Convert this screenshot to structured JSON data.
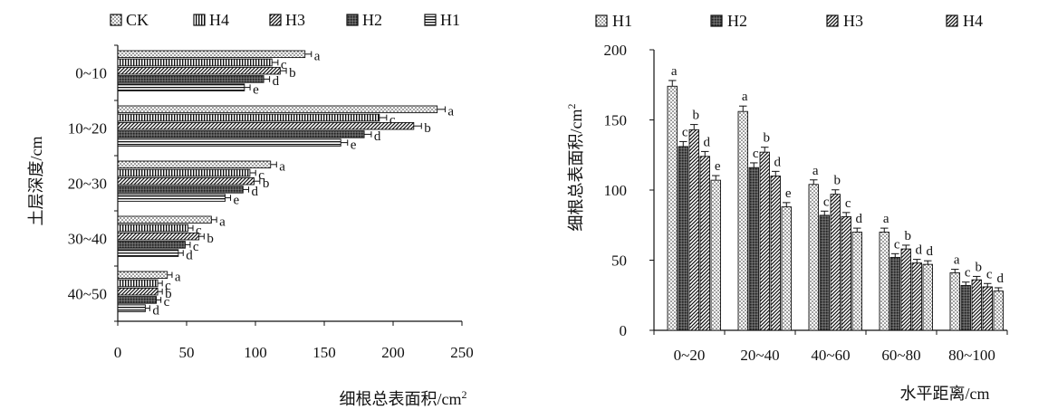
{
  "chart_data": [
    {
      "type": "bar",
      "orientation": "horizontal",
      "title": "",
      "xlabel": "细根总表面积/cm²",
      "ylabel": "土层深度/cm",
      "xlim": [
        0,
        250
      ],
      "xticks": [
        0,
        50,
        100,
        150,
        200,
        250
      ],
      "categories": [
        "0~10",
        "10~20",
        "20~30",
        "30~40",
        "40~50"
      ],
      "legend_position": "top",
      "series": [
        {
          "name": "CK",
          "values": [
            136,
            232,
            111,
            68,
            36
          ],
          "letters": [
            "a",
            "a",
            "a",
            "a",
            "a"
          ]
        },
        {
          "name": "H4",
          "values": [
            112,
            190,
            96,
            51,
            29
          ],
          "letters": [
            "c",
            "c",
            "c",
            "c",
            "c"
          ]
        },
        {
          "name": "H3",
          "values": [
            118,
            215,
            99,
            59,
            29
          ],
          "letters": [
            "b",
            "b",
            "b",
            "b",
            "b"
          ]
        },
        {
          "name": "H2",
          "values": [
            106,
            179,
            91,
            49,
            28
          ],
          "letters": [
            "d",
            "d",
            "d",
            "c",
            "c"
          ]
        },
        {
          "name": "H1",
          "values": [
            92,
            162,
            78,
            44,
            20
          ],
          "letters": [
            "e",
            "e",
            "e",
            "d",
            "d"
          ]
        }
      ]
    },
    {
      "type": "bar",
      "orientation": "vertical",
      "title": "",
      "xlabel": "水平距离/cm",
      "ylabel": "细根总表面积/cm²",
      "ylim": [
        0,
        200
      ],
      "yticks": [
        0,
        50,
        100,
        150,
        200
      ],
      "categories": [
        "0~20",
        "20~40",
        "40~60",
        "60~80",
        "80~100"
      ],
      "legend_position": "top",
      "series": [
        {
          "name": "",
          "values": [
            174,
            156,
            104,
            70,
            41
          ],
          "letters": [
            "a",
            "a",
            "a",
            "a",
            "a"
          ]
        },
        {
          "name": "H1",
          "values": [
            131,
            116,
            82,
            52,
            32
          ],
          "letters": [
            "c",
            "c",
            "c",
            "c",
            "c"
          ]
        },
        {
          "name": "H2",
          "values": [
            143,
            127,
            97,
            58,
            36
          ],
          "letters": [
            "b",
            "b",
            "b",
            "b",
            "b"
          ]
        },
        {
          "name": "H3",
          "values": [
            124,
            110,
            81,
            48,
            31
          ],
          "letters": [
            "d",
            "d",
            "c",
            "d",
            "c"
          ]
        },
        {
          "name": "H4",
          "values": [
            107,
            88,
            70,
            47,
            28
          ],
          "letters": [
            "e",
            "e",
            "d",
            "d",
            "d"
          ]
        }
      ]
    }
  ]
}
